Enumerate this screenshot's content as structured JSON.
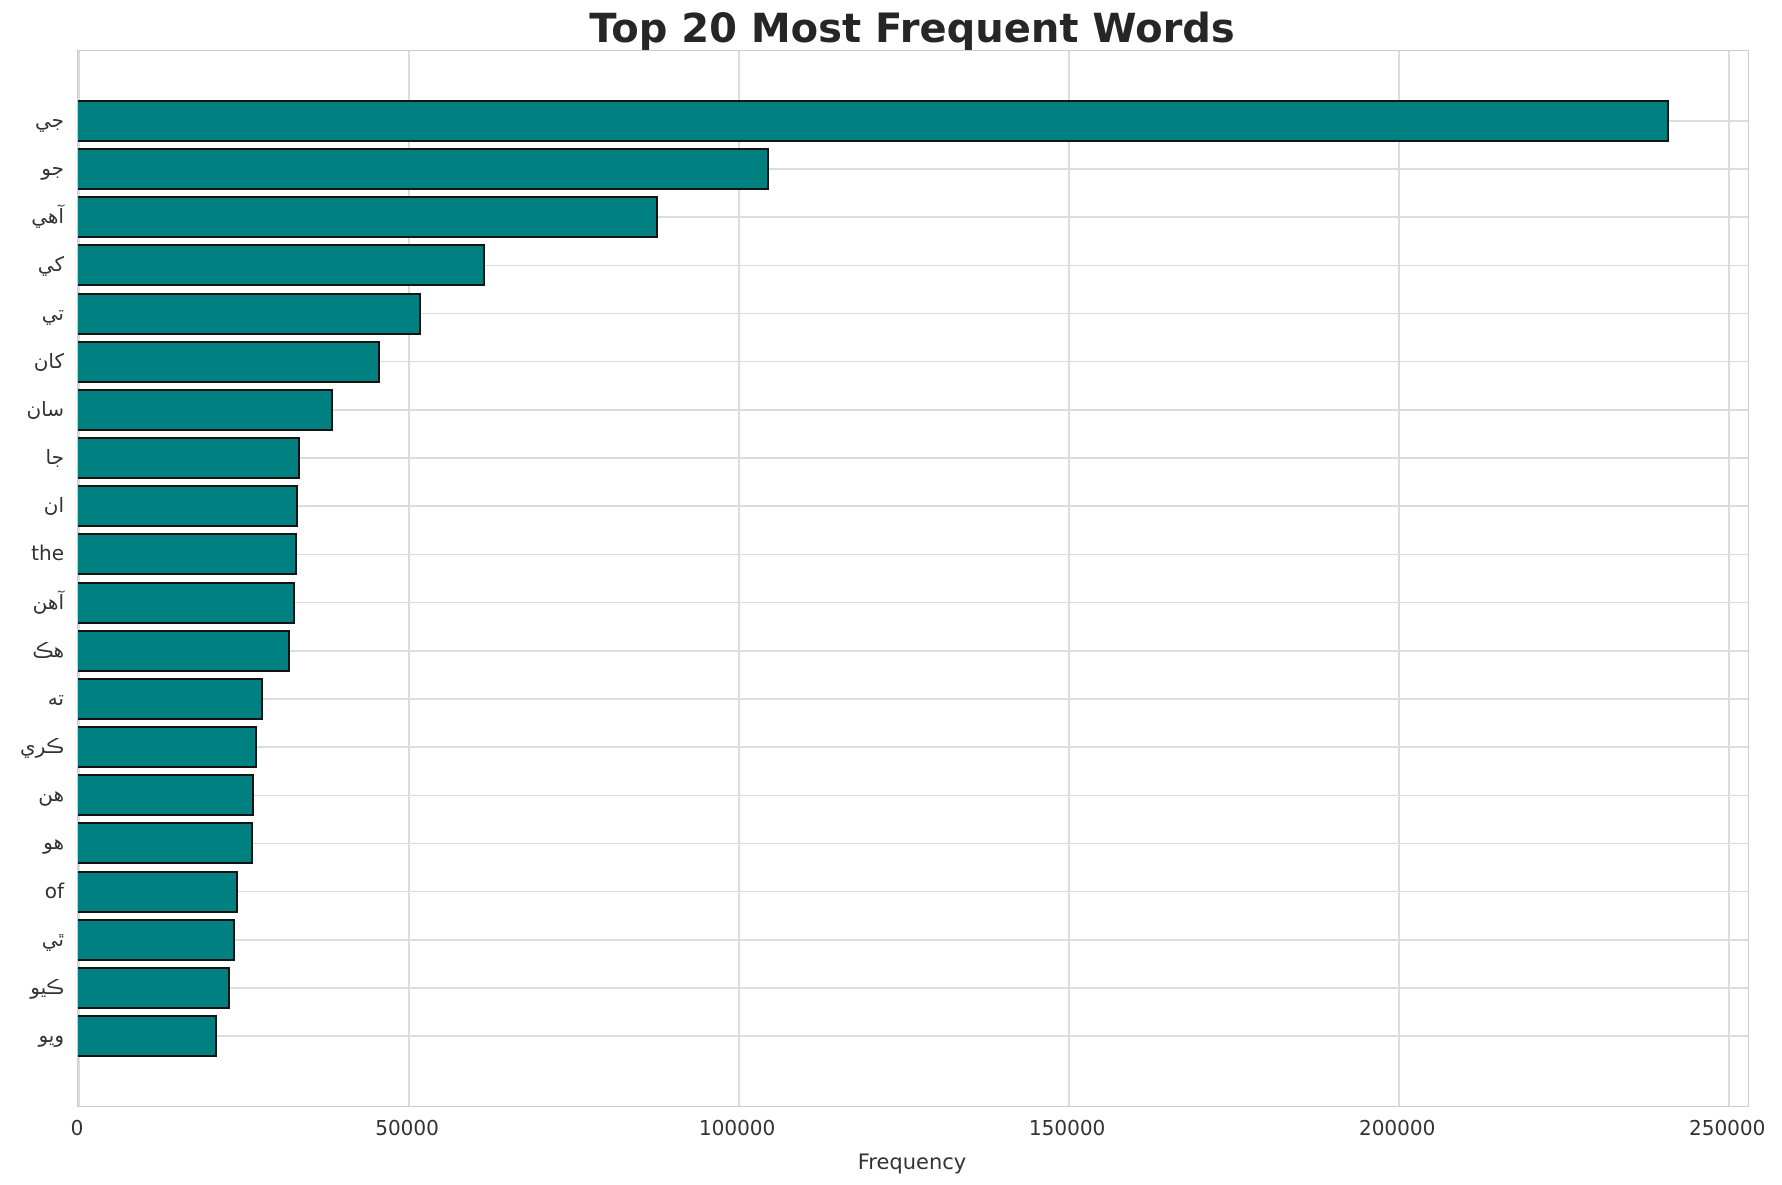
{
  "title": "Top 20 Most Frequent Words",
  "xlabel": "Frequency",
  "chart_data": {
    "type": "bar",
    "orientation": "horizontal",
    "title": "Top 20 Most Frequent Words",
    "xlabel": "Frequency",
    "ylabel": "",
    "categories": [
      "جي",
      "جو",
      "آهي",
      "کي",
      "تي",
      "کان",
      "سان",
      "جا",
      "ان",
      "the",
      "آهن",
      "هڪ",
      "ته",
      "ڪري",
      "هن",
      "هو",
      "of",
      "ٿي",
      "ڪيو",
      "ويو"
    ],
    "values": [
      241000,
      104700,
      87900,
      61700,
      52000,
      45800,
      38600,
      33600,
      33300,
      33200,
      32900,
      32100,
      28000,
      27100,
      26700,
      26500,
      24200,
      23800,
      23000,
      21100
    ],
    "xlim": [
      0,
      253000
    ],
    "xticks": [
      0,
      50000,
      100000,
      150000,
      200000,
      250000
    ],
    "grid": true,
    "legend": false,
    "bar_color": "#008080",
    "bar_edge_color": "#141414",
    "grid_color": "#dcdcdc",
    "background_color": "#ffffff"
  }
}
